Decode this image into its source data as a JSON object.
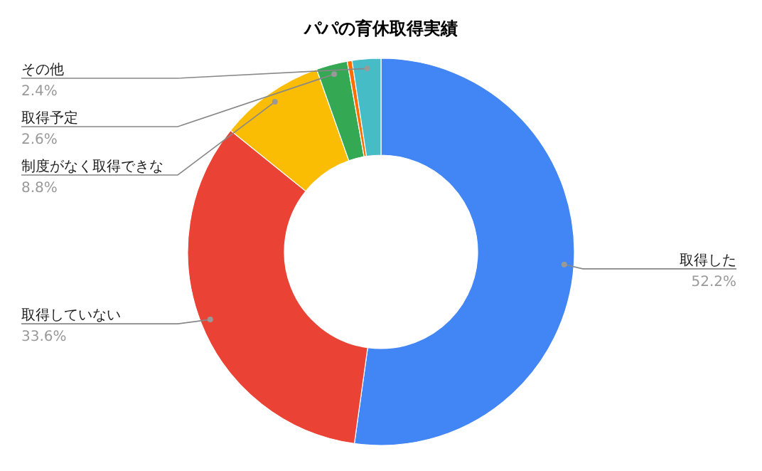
{
  "chart_data": {
    "type": "donut",
    "title": "パパの育休取得実績",
    "categories": [
      "取得した",
      "取得していない",
      "制度がなく取得できな",
      "取得予定",
      null,
      "その他"
    ],
    "values": [
      52.2,
      33.6,
      8.8,
      2.6,
      0.4,
      2.4
    ],
    "value_labels": [
      "52.2%",
      "33.6%",
      "8.8%",
      "2.6%",
      null,
      "2.4%"
    ],
    "colors": [
      "#4285f4",
      "#ea4335",
      "#fbbc04",
      "#34a853",
      "#ff6d01",
      "#46bdc6"
    ],
    "legend": false
  }
}
